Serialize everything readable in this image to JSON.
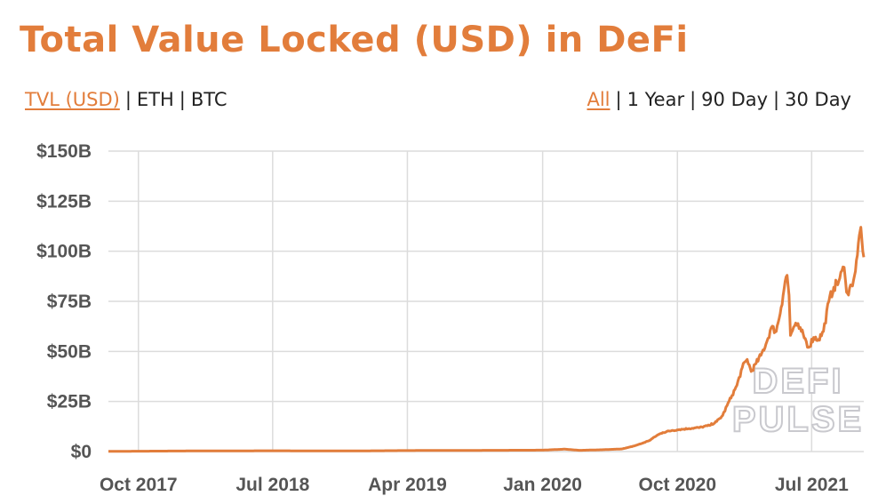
{
  "title": "Total Value Locked (USD) in DeFi",
  "metric_options": [
    {
      "label": "TVL (USD)",
      "active": true
    },
    {
      "label": "ETH",
      "active": false
    },
    {
      "label": "BTC",
      "active": false
    }
  ],
  "range_options": [
    {
      "label": "All",
      "active": true
    },
    {
      "label": "1 Year",
      "active": false
    },
    {
      "label": "90 Day",
      "active": false
    },
    {
      "label": "30 Day",
      "active": false
    }
  ],
  "separator": "|",
  "colors": {
    "accent": "#e27d3b",
    "grid": "#dcdcdc",
    "tick_text": "#555555"
  },
  "watermark": [
    "DEFI",
    "PULSE"
  ],
  "chart_data": {
    "type": "line",
    "title": "",
    "xlabel": "",
    "ylabel": "",
    "x_tick_labels": [
      "Oct 2017",
      "Jul 2018",
      "Apr 2019",
      "Jan 2020",
      "Oct 2020",
      "Jul 2021"
    ],
    "y_tick_labels": [
      "$0",
      "$25B",
      "$50B",
      "$75B",
      "$100B",
      "$125B",
      "$150B"
    ],
    "ylim": [
      0,
      150
    ],
    "y_unit": "USD billions",
    "xlim": [
      "2017-08-01",
      "2021-10-15"
    ],
    "grid": true,
    "series": [
      {
        "color": "#e27d3b",
        "points": [
          [
            "2017-08-01",
            0.1
          ],
          [
            "2018-01-15",
            0.3
          ],
          [
            "2018-07-01",
            0.4
          ],
          [
            "2018-12-01",
            0.3
          ],
          [
            "2019-04-01",
            0.5
          ],
          [
            "2019-09-01",
            0.6
          ],
          [
            "2020-01-01",
            0.7
          ],
          [
            "2020-02-15",
            1.2
          ],
          [
            "2020-03-15",
            0.6
          ],
          [
            "2020-05-01",
            0.9
          ],
          [
            "2020-06-10",
            1.3
          ],
          [
            "2020-07-01",
            2.5
          ],
          [
            "2020-07-20",
            4.0
          ],
          [
            "2020-08-05",
            5.5
          ],
          [
            "2020-08-20",
            8.0
          ],
          [
            "2020-09-01",
            9.5
          ],
          [
            "2020-09-20",
            10.5
          ],
          [
            "2020-10-05",
            11.0
          ],
          [
            "2020-10-25",
            11.5
          ],
          [
            "2020-11-15",
            12.0
          ],
          [
            "2020-12-05",
            13.0
          ],
          [
            "2020-12-20",
            15.0
          ],
          [
            "2021-01-01",
            18.0
          ],
          [
            "2021-01-10",
            23.0
          ],
          [
            "2021-01-20",
            28.0
          ],
          [
            "2021-01-30",
            33.0
          ],
          [
            "2021-02-10",
            42.0
          ],
          [
            "2021-02-20",
            46.0
          ],
          [
            "2021-02-28",
            40.0
          ],
          [
            "2021-03-10",
            44.0
          ],
          [
            "2021-03-20",
            48.0
          ],
          [
            "2021-04-01",
            55.0
          ],
          [
            "2021-04-10",
            62.0
          ],
          [
            "2021-04-20",
            60.0
          ],
          [
            "2021-04-30",
            72.0
          ],
          [
            "2021-05-08",
            85.0
          ],
          [
            "2021-05-12",
            88.0
          ],
          [
            "2021-05-16",
            78.0
          ],
          [
            "2021-05-19",
            58.0
          ],
          [
            "2021-05-25",
            62.0
          ],
          [
            "2021-06-01",
            63.0
          ],
          [
            "2021-06-10",
            60.0
          ],
          [
            "2021-06-20",
            55.0
          ],
          [
            "2021-06-25",
            52.0
          ],
          [
            "2021-07-05",
            57.0
          ],
          [
            "2021-07-15",
            56.0
          ],
          [
            "2021-07-25",
            60.0
          ],
          [
            "2021-08-05",
            75.0
          ],
          [
            "2021-08-15",
            82.0
          ],
          [
            "2021-08-25",
            85.0
          ],
          [
            "2021-09-05",
            92.0
          ],
          [
            "2021-09-08",
            85.0
          ],
          [
            "2021-09-12",
            79.0
          ],
          [
            "2021-09-20",
            83.0
          ],
          [
            "2021-09-28",
            90.0
          ],
          [
            "2021-10-02",
            98.0
          ],
          [
            "2021-10-06",
            108.0
          ],
          [
            "2021-10-09",
            112.0
          ],
          [
            "2021-10-11",
            106.0
          ],
          [
            "2021-10-13",
            100.0
          ],
          [
            "2021-10-15",
            97.0
          ]
        ]
      }
    ]
  }
}
